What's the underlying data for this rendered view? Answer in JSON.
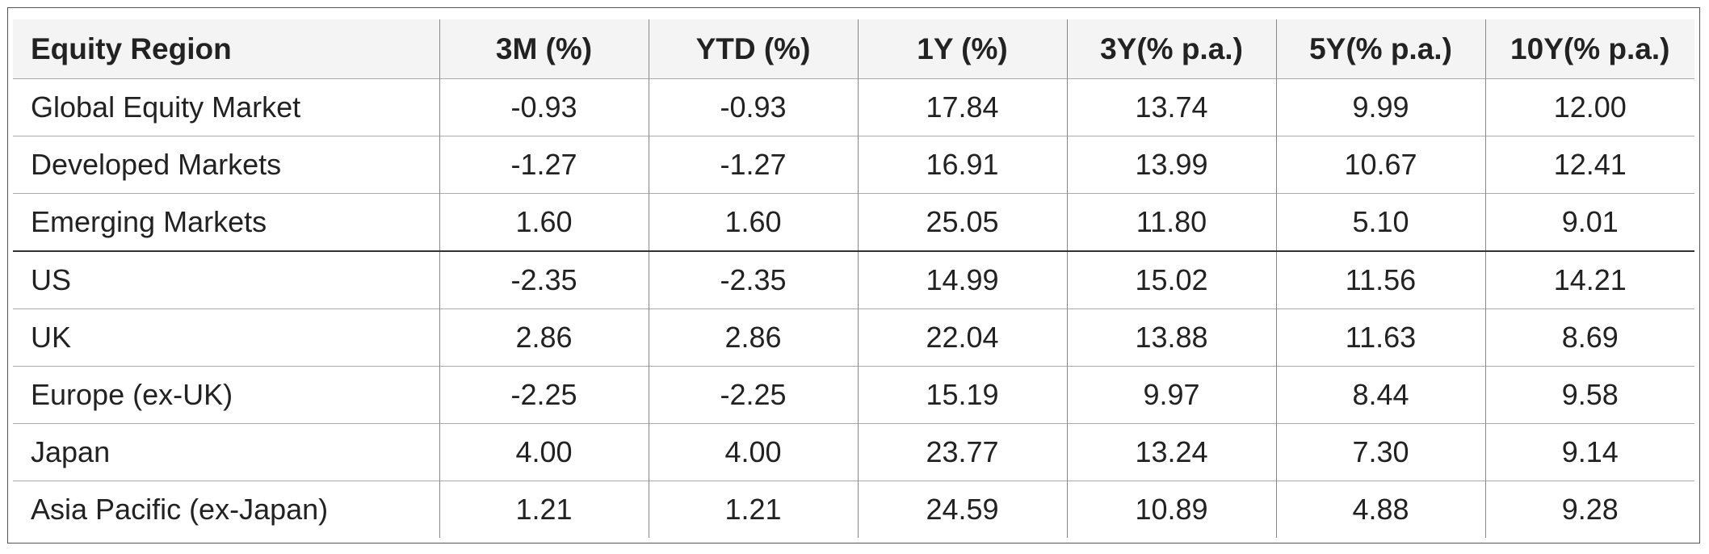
{
  "table": {
    "header": [
      "Equity Region",
      "3M (%)",
      "YTD (%)",
      "1Y (%)",
      "3Y(% p.a.)",
      "5Y(% p.a.)",
      "10Y(% p.a.)"
    ],
    "rows": [
      [
        "Global Equity Market",
        "-0.93",
        "-0.93",
        "17.84",
        "13.74",
        "9.99",
        "12.00"
      ],
      [
        "Developed Markets",
        "-1.27",
        "-1.27",
        "16.91",
        "13.99",
        "10.67",
        "12.41"
      ],
      [
        "Emerging Markets",
        "1.60",
        "1.60",
        "25.05",
        "11.80",
        "5.10",
        "9.01"
      ],
      [
        "US",
        "-2.35",
        "-2.35",
        "14.99",
        "15.02",
        "11.56",
        "14.21"
      ],
      [
        "UK",
        "2.86",
        "2.86",
        "22.04",
        "13.88",
        "11.63",
        "8.69"
      ],
      [
        "Europe (ex-UK)",
        "-2.25",
        "-2.25",
        "15.19",
        "9.97",
        "8.44",
        "9.58"
      ],
      [
        "Japan",
        "4.00",
        "4.00",
        "23.77",
        "13.24",
        "7.30",
        "9.14"
      ],
      [
        "Asia Pacific (ex-Japan)",
        "1.21",
        "1.21",
        "24.59",
        "10.89",
        "4.88",
        "9.28"
      ]
    ]
  }
}
